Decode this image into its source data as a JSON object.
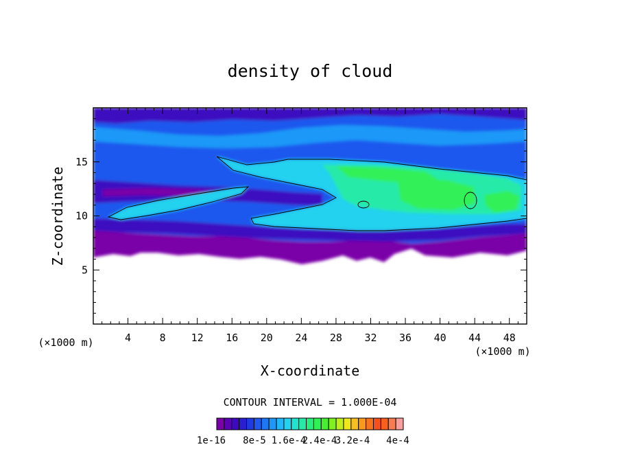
{
  "chart_data": {
    "type": "heatmap",
    "title": "density of cloud",
    "xlabel": "X-coordinate",
    "ylabel": "Z-coordinate",
    "x_unit": "(×1000 m)",
    "y_unit": "(×1000 m)",
    "xlim": [
      0,
      50
    ],
    "ylim": [
      0,
      20
    ],
    "x_ticks": [
      4,
      8,
      12,
      16,
      20,
      24,
      28,
      32,
      36,
      40,
      44,
      48
    ],
    "y_ticks": [
      5,
      10,
      15
    ],
    "contour_interval_label": "CONTOUR INTERVAL = 1.000E-04",
    "colorbar_labels": [
      "1e-16",
      "8e-5",
      "1.6e-4",
      "2.4e-4",
      "3.2e-4",
      "4e-4"
    ],
    "colorbar_colors": [
      "#7a00a8",
      "#5c00b4",
      "#3e08c0",
      "#2a1ed0",
      "#1e3ae0",
      "#1e58ee",
      "#1e78f4",
      "#1e98f8",
      "#20b8f8",
      "#22d2ee",
      "#24e2d0",
      "#26eaa8",
      "#28ee80",
      "#30f058",
      "#46f030",
      "#80f020",
      "#c0f01c",
      "#f0e81c",
      "#f8c01c",
      "#f89a1c",
      "#f8741c",
      "#f8501c",
      "#f8601e",
      "#f87c50",
      "#f8a0a0"
    ]
  }
}
